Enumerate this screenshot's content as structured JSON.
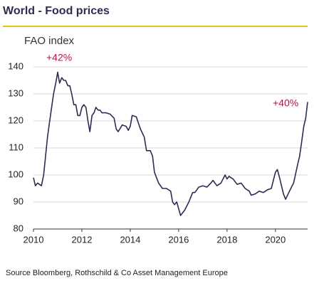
{
  "chart_data": {
    "type": "line",
    "title": "World - Food prices",
    "subtitle": "FAO index",
    "source": "Source Bloomberg, Rothschild  & Co Asset Management Europe",
    "annotations": [
      "+42%",
      "+40%"
    ],
    "x": [
      2010.0,
      2010.08,
      2010.17,
      2010.25,
      2010.33,
      2010.42,
      2010.5,
      2010.58,
      2010.67,
      2010.75,
      2010.83,
      2010.92,
      2011.0,
      2011.08,
      2011.17,
      2011.25,
      2011.33,
      2011.42,
      2011.5,
      2011.58,
      2011.67,
      2011.75,
      2011.83,
      2011.92,
      2012.0,
      2012.08,
      2012.17,
      2012.25,
      2012.33,
      2012.42,
      2012.5,
      2012.58,
      2012.67,
      2012.75,
      2012.83,
      2013.0,
      2013.17,
      2013.33,
      2013.42,
      2013.5,
      2013.67,
      2013.83,
      2013.92,
      2014.0,
      2014.08,
      2014.25,
      2014.42,
      2014.58,
      2014.67,
      2014.83,
      2014.92,
      2015.0,
      2015.17,
      2015.33,
      2015.5,
      2015.67,
      2015.75,
      2015.83,
      2015.92,
      2016.0,
      2016.08,
      2016.25,
      2016.42,
      2016.58,
      2016.67,
      2016.83,
      2017.0,
      2017.17,
      2017.33,
      2017.42,
      2017.58,
      2017.75,
      2017.92,
      2018.0,
      2018.08,
      2018.25,
      2018.42,
      2018.58,
      2018.75,
      2018.92,
      2019.0,
      2019.17,
      2019.33,
      2019.5,
      2019.67,
      2019.83,
      2020.0,
      2020.08,
      2020.17,
      2020.33,
      2020.42,
      2020.58,
      2020.75,
      2020.92,
      2021.0,
      2021.08,
      2021.17,
      2021.25,
      2021.33
    ],
    "series": [
      {
        "color": "#2b2d52",
        "values": [
          99,
          96,
          97,
          96.5,
          96,
          100,
          107,
          114,
          120,
          125,
          130,
          134,
          138,
          134,
          136,
          135,
          135,
          133,
          133,
          130,
          126,
          126,
          122,
          122,
          125,
          126,
          125,
          120,
          116,
          122,
          123,
          125,
          124,
          124,
          123,
          123,
          122.5,
          121,
          117,
          116,
          118.5,
          118,
          116.5,
          118,
          122,
          121.5,
          117,
          114,
          109,
          109,
          107,
          101,
          97,
          95,
          95,
          94,
          90,
          89,
          90,
          87.5,
          85,
          87,
          90,
          93.5,
          93.5,
          95.5,
          96,
          95.5,
          97,
          98,
          96,
          97,
          100,
          98.5,
          99.5,
          98.5,
          96.5,
          97,
          95,
          94,
          92.5,
          93,
          94,
          93.5,
          94.5,
          95,
          101,
          102,
          99,
          93,
          91,
          94,
          97,
          104,
          107,
          112,
          118,
          121,
          127
        ]
      }
    ],
    "xlim": [
      2010,
      2021.33
    ],
    "xticks": [
      2010,
      2012,
      2014,
      2016,
      2018,
      2020
    ],
    "ylim": [
      80,
      140
    ],
    "yticks": [
      80,
      90,
      100,
      110,
      120,
      130,
      140
    ],
    "grid": true
  }
}
